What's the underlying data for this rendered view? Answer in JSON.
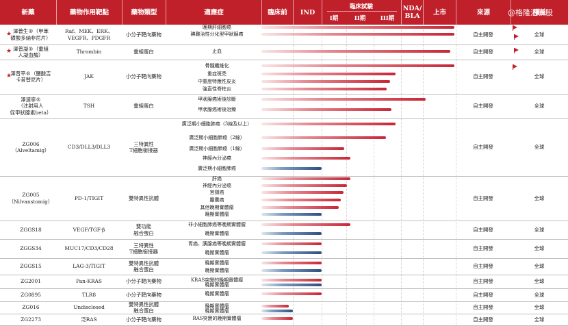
{
  "headers": {
    "drug": "新藥",
    "target": "藥物作用靶點",
    "type": "藥物類型",
    "indication": "適應症",
    "preclinical": "臨床前",
    "ind": "IND",
    "clinical": "臨床試驗",
    "phase1": "I期",
    "phase2": "II期",
    "phase3": "III期",
    "nda": "NDA/\nBLA",
    "market": "上市",
    "source": "來源",
    "rights": "權益"
  },
  "watermark": "@格隆汇新股",
  "colors": {
    "header": "#c0202a",
    "bar_red": "#c82636",
    "bar_blue": "#2f4e80"
  },
  "rows": [
    {
      "drug": "澤普生®（甲苯\n磺酸多納非尼片）",
      "star": true,
      "target": "Raf、MEK、ERK、\nVEGFR、PDGFR",
      "type": "小分子靶向藥物",
      "source": "自主開發",
      "rights": "全球"
    },
    {
      "drug": "澤普凝®（重組\n人凝血酶）",
      "star": true,
      "target": "Thrombin",
      "type": "重組蛋白",
      "source": "自主開發",
      "rights": "全球"
    },
    {
      "drug": "澤普平®（鹽酸吉\n卡昔替尼片）",
      "star": true,
      "target": "JAK",
      "type": "小分子靶向藥物",
      "source": "自主開發",
      "rights": "全球"
    },
    {
      "drug": "澤速寧®\n（注射用人\n促甲狀腺素beta）",
      "star": false,
      "target": "TSH",
      "type": "重組蛋白",
      "source": "自主開發",
      "rights": "全球"
    },
    {
      "drug": "ZG006\n（Alveltamig）",
      "star": false,
      "target": "CD3/DLL3/DLL3",
      "type": "三特異性\nT細胞銜接器",
      "source": "自主開發",
      "rights": "全球"
    },
    {
      "drug": "ZG005\n（Nilvanstomig）",
      "star": false,
      "target": "PD-1/TIGIT",
      "type": "雙特異性抗體",
      "source": "自主開發",
      "rights": "全球"
    },
    {
      "drug": "ZGGS18",
      "star": false,
      "target": "VEGF/TGF-β",
      "type": "雙功能\n融合蛋白",
      "source": "自主開發",
      "rights": "全球"
    },
    {
      "drug": "ZGGS34",
      "star": false,
      "target": "MUC17/CD3/CD28",
      "type": "三特異性\nT細胞銜接器",
      "source": "自主開發",
      "rights": "全球"
    },
    {
      "drug": "ZGGS15",
      "star": false,
      "target": "LAG-3/TIGIT",
      "type": "雙特異性抗體\n融合蛋白",
      "source": "自主開發",
      "rights": "全球"
    },
    {
      "drug": "ZG2001",
      "star": false,
      "target": "Pan-KRAS",
      "type": "小分子靶向藥物",
      "source": "自主開發",
      "rights": "全球"
    },
    {
      "drug": "ZG0895",
      "star": false,
      "target": "TLR8",
      "type": "小分子靶向藥物",
      "source": "自主開發",
      "rights": "全球"
    },
    {
      "drug": "ZG016",
      "star": false,
      "target": "Undisclosed",
      "type": "雙特異性抗體\n融合蛋白",
      "source": "自主開發",
      "rights": "全球"
    },
    {
      "drug": "ZG2273",
      "star": false,
      "target": "泛RAS",
      "type": "小分子靶向藥物",
      "source": "自主開發",
      "rights": "全球"
    }
  ],
  "indications": [
    {
      "label": "晚期肝細胞癌",
      "stage": "上市",
      "color": "red"
    },
    {
      "label": "碘難治性分化型甲狀腺癌",
      "stage": "上市",
      "color": "red"
    },
    {
      "label": "止血",
      "stage": "上市",
      "color": "red"
    },
    {
      "label": "骨髓纖維化",
      "stage": "上市",
      "color": "red"
    },
    {
      "label": "重症斑禿",
      "stage": "III期",
      "color": "red"
    },
    {
      "label": "中重度特應性皮炎",
      "stage": "III期",
      "color": "red"
    },
    {
      "label": "強直性脊柱炎",
      "stage": "III期",
      "color": "red"
    },
    {
      "label": "甲狀腺癌術後診斷",
      "stage": "NDA/BLA",
      "color": "red"
    },
    {
      "label": "甲狀腺癌術後治療",
      "stage": "III期",
      "color": "red"
    },
    {
      "label": "廣泛期小細胞肺癌（3線及以上）",
      "stage": "III期",
      "color": "red"
    },
    {
      "label": "廣泛期小細胞肺癌（2線）",
      "stage": "III期",
      "color": "red"
    },
    {
      "label": "廣泛期小細胞肺癌（1線）",
      "stage": "II期",
      "color": "red"
    },
    {
      "label": "神經內分泌癌",
      "stage": "II期",
      "color": "red"
    },
    {
      "label": "廣泛期小細胞肺癌",
      "stage": "I期",
      "color": "blue"
    },
    {
      "label": "肝癌",
      "stage": "II期",
      "color": "red"
    },
    {
      "label": "神經內分泌癌",
      "stage": "II期",
      "color": "red"
    },
    {
      "label": "宮頸癌",
      "stage": "II期",
      "color": "red"
    },
    {
      "label": "膽囊癌",
      "stage": "II期",
      "color": "red"
    },
    {
      "label": "其他晚期實體瘤",
      "stage": "II期",
      "color": "red"
    },
    {
      "label": "晚期實體瘤",
      "stage": "I期",
      "color": "blue"
    },
    {
      "label": "非小細胞肺癌等晚期實體瘤",
      "stage": "II期",
      "color": "red"
    },
    {
      "label": "晚期實體瘤",
      "stage": "I期",
      "color": "blue"
    },
    {
      "label": "胃癌、胰腺癌等晚期實體瘤",
      "stage": "I期",
      "color": "red"
    },
    {
      "label": "晚期實體瘤",
      "stage": "I期",
      "color": "blue"
    },
    {
      "label": "晚期實體瘤",
      "stage": "I期",
      "color": "red"
    },
    {
      "label": "晚期實體瘤",
      "stage": "I期",
      "color": "blue"
    },
    {
      "label": "KRAS突變的晚期實體瘤",
      "stage": "I期",
      "color": "red"
    },
    {
      "label": "晚期實體瘤",
      "stage": "I期",
      "color": "blue"
    },
    {
      "label": "晚期實體瘤",
      "stage": "I期",
      "color": "red"
    },
    {
      "label": "晚期實體瘤",
      "stage": "IND",
      "color": "red"
    },
    {
      "label": "晚期實體瘤",
      "stage": "IND",
      "color": "blue"
    },
    {
      "label": "RAS突變的晚期實體瘤",
      "stage": "IND",
      "color": "red"
    }
  ]
}
